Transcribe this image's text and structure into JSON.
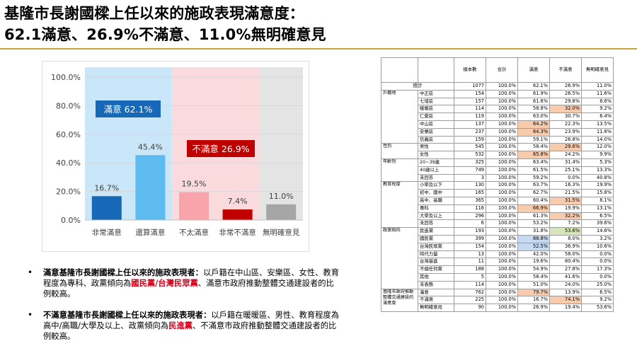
{
  "title": {
    "line1": "基隆市長謝國樑上任以來的施政表現滿意度：",
    "line2": "62.1滿意、26.9%不滿意、11.0%無明確意見"
  },
  "colors": {
    "title_rule": "#c8a23a",
    "satisfied_zone": "#c9e7f8",
    "unsatisfied_zone": "#fbdadd",
    "no_opinion_zone": "#e4e4e4",
    "very_satisfied": "#1868b8",
    "somewhat_satisfied": "#5dbbf0",
    "somewhat_unsatisfied": "#f9a3aa",
    "very_unsatisfied": "#c00000",
    "no_opinion": "#a6a6a6",
    "highlight_red": "#f8cbad",
    "highlight_blue": "#c5d9f1",
    "highlight_green": "#d8e4bc",
    "emphasis_text": "#d0001b"
  },
  "chart_data": {
    "type": "bar",
    "categories": [
      "非常滿意",
      "還算滿意",
      "不太滿意",
      "非常不滿意",
      "無明確意見"
    ],
    "values": [
      16.7,
      45.4,
      19.5,
      7.4,
      11.0
    ],
    "value_labels": [
      "16.7%",
      "45.4%",
      "19.5%",
      "7.4%",
      "11.0%"
    ],
    "y_ticks": [
      "0.0%",
      "20.0%",
      "40.0%",
      "60.0%",
      "80.0%",
      "100.0%"
    ],
    "ylim": [
      0,
      100
    ],
    "grid": true,
    "annotations": [
      {
        "text": "滿意 62.1%",
        "group": "satisfied"
      },
      {
        "text": "不滿意 26.9%",
        "group": "unsatisfied"
      }
    ]
  },
  "notes": [
    {
      "lead": "滿意基隆市長謝國樑上任以來的施政表現者：",
      "body1": "以戶籍在中山區、安樂區、女性、教育程度為專科、政黨傾向為",
      "emph": "國民黨/台灣民眾黨",
      "body2": "、滿意市政府推動整體交通建設者的比例較高。"
    },
    {
      "lead": "不滿意基隆市長謝國樑上任以來的施政表現者：",
      "body1": "以戶籍在暖暖區、男性、教育程度為高中/高職/大學及以上、政黨傾向為",
      "emph": "民進黨",
      "body2": "、不滿意市政府推動整體交通建設者的比例較高。"
    }
  ],
  "crosstab": {
    "headers": [
      "樣本數",
      "合計",
      "滿意",
      "不滿意",
      "無明確意見"
    ],
    "total": {
      "label": "總計",
      "values": [
        "1077",
        "100.0%",
        "62.1%",
        "26.9%",
        "11.0%"
      ]
    },
    "groups": [
      {
        "name": "戶籍地",
        "rows": [
          {
            "label": "中正區",
            "values": [
              "154",
              "100.0%",
              "61.9%",
              "26.5%",
              "11.6%"
            ],
            "hl": ""
          },
          {
            "label": "七堵區",
            "values": [
              "157",
              "100.0%",
              "61.6%",
              "29.8%",
              "8.6%"
            ],
            "hl": ""
          },
          {
            "label": "暖暖區",
            "values": [
              "114",
              "100.0%",
              "58.8%",
              "32.0%",
              "9.2%"
            ],
            "hl": "r3"
          },
          {
            "label": "仁愛區",
            "values": [
              "119",
              "100.0%",
              "63.0%",
              "30.7%",
              "6.4%"
            ],
            "hl": ""
          },
          {
            "label": "中山區",
            "values": [
              "137",
              "100.0%",
              "64.2%",
              "22.3%",
              "13.5%"
            ],
            "hl": "r2"
          },
          {
            "label": "安樂區",
            "values": [
              "237",
              "100.0%",
              "64.3%",
              "23.9%",
              "11.8%"
            ],
            "hl": "r2"
          },
          {
            "label": "信義區",
            "values": [
              "159",
              "100.0%",
              "59.1%",
              "26.8%",
              "14.0%"
            ],
            "hl": ""
          }
        ]
      },
      {
        "name": "性別",
        "rows": [
          {
            "label": "男性",
            "values": [
              "545",
              "100.0%",
              "58.4%",
              "29.6%",
              "12.0%"
            ],
            "hl": "r3"
          },
          {
            "label": "女性",
            "values": [
              "532",
              "100.0%",
              "65.8%",
              "24.2%",
              "9.9%"
            ],
            "hl": "r2"
          }
        ]
      },
      {
        "name": "年齡別",
        "rows": [
          {
            "label": "20~39歲",
            "values": [
              "325",
              "100.0%",
              "63.4%",
              "31.4%",
              "5.3%"
            ],
            "hl": ""
          },
          {
            "label": "40歲以上",
            "values": [
              "749",
              "100.0%",
              "61.5%",
              "25.1%",
              "13.3%"
            ],
            "hl": ""
          },
          {
            "label": "未回答",
            "values": [
              "3",
              "100.0%",
              "59.2%",
              "0.0%",
              "40.8%"
            ],
            "hl": ""
          }
        ]
      },
      {
        "name": "教育程度",
        "rows": [
          {
            "label": "小學及以下",
            "values": [
              "130",
              "100.0%",
              "63.7%",
              "16.3%",
              "19.9%"
            ],
            "hl": ""
          },
          {
            "label": "初中、國中",
            "values": [
              "165",
              "100.0%",
              "62.7%",
              "21.5%",
              "15.8%"
            ],
            "hl": ""
          },
          {
            "label": "高中、高職",
            "values": [
              "365",
              "100.0%",
              "60.4%",
              "31.5%",
              "8.1%"
            ],
            "hl": "r3"
          },
          {
            "label": "專科",
            "values": [
              "116",
              "100.0%",
              "66.9%",
              "19.9%",
              "13.1%"
            ],
            "hl": "r2"
          },
          {
            "label": "大學及以上",
            "values": [
              "296",
              "100.0%",
              "61.3%",
              "32.2%",
              "6.5%"
            ],
            "hl": "r3"
          },
          {
            "label": "未回答",
            "values": [
              "6",
              "100.0%",
              "53.2%",
              "7.2%",
              "39.6%"
            ],
            "hl": ""
          }
        ]
      },
      {
        "name": "政黨傾向",
        "rows": [
          {
            "label": "民進黨",
            "values": [
              "193",
              "100.0%",
              "31.8%",
              "53.6%",
              "14.6%"
            ],
            "hl": "g3"
          },
          {
            "label": "國民黨",
            "values": [
              "399",
              "100.0%",
              "88.8%",
              "8.0%",
              "3.2%"
            ],
            "hl": "b2"
          },
          {
            "label": "台灣民眾黨",
            "values": [
              "154",
              "100.0%",
              "52.5%",
              "36.9%",
              "10.6%"
            ],
            "hl": "b2"
          },
          {
            "label": "時代力量",
            "values": [
              "13",
              "100.0%",
              "42.0%",
              "58.0%",
              "0.0%"
            ],
            "hl": ""
          },
          {
            "label": "台灣基進",
            "values": [
              "11",
              "100.0%",
              "19.6%",
              "80.4%",
              "0.0%"
            ],
            "hl": ""
          },
          {
            "label": "不偏任何黨",
            "values": [
              "188",
              "100.0%",
              "54.9%",
              "27.8%",
              "17.3%"
            ],
            "hl": ""
          },
          {
            "label": "其他",
            "values": [
              "5",
              "100.0%",
              "58.4%",
              "41.6%",
              "0.0%"
            ],
            "hl": ""
          },
          {
            "label": "未表態",
            "values": [
              "114",
              "100.0%",
              "51.0%",
              "24.0%",
              "25.0%"
            ],
            "hl": ""
          }
        ]
      },
      {
        "name": "基隆市政府推動整體交通建設的滿意度",
        "rows": [
          {
            "label": "滿意",
            "values": [
              "762",
              "100.0%",
              "79.7%",
              "13.9%",
              "6.5%"
            ],
            "hl": "r2"
          },
          {
            "label": "不滿意",
            "values": [
              "225",
              "100.0%",
              "16.7%",
              "74.1%",
              "9.2%"
            ],
            "hl": "r3"
          },
          {
            "label": "無明確意見",
            "values": [
              "90",
              "100.0%",
              "26.9%",
              "19.4%",
              "53.6%"
            ],
            "hl": ""
          }
        ]
      }
    ]
  }
}
